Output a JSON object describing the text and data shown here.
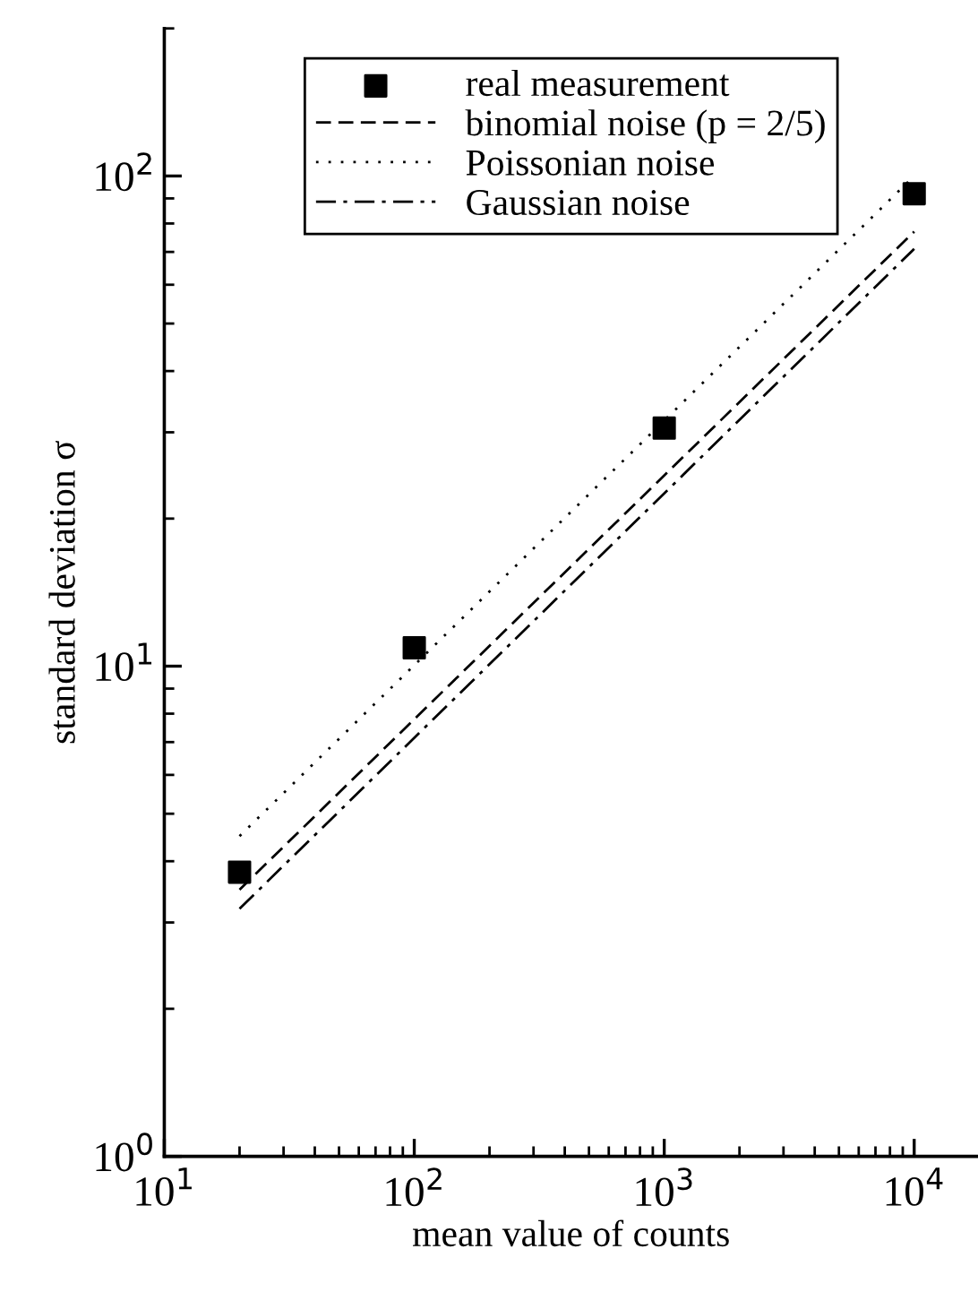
{
  "chart_data": {
    "type": "scatter",
    "xlabel": "mean value of counts",
    "ylabel": "standard deviation σ",
    "log": "xy",
    "xlim": [
      10,
      18000
    ],
    "ylim": [
      1,
      200
    ],
    "xticks": [
      {
        "value": 10,
        "label": "10$^{1}$"
      },
      {
        "value": 100,
        "label": "10$^{2}$"
      },
      {
        "value": 1000,
        "label": "10$^{3}$"
      },
      {
        "value": 10000,
        "label": "10$^{4}$"
      }
    ],
    "yticks": [
      {
        "value": 1,
        "label": "10$^{0}$"
      },
      {
        "value": 10,
        "label": "10$^{1}$"
      },
      {
        "value": 100,
        "label": "10$^{2}$"
      }
    ],
    "legend": "top",
    "grid": false,
    "series": [
      {
        "name": "real measurement",
        "marker": "square",
        "color": "#000000",
        "x": [
          20,
          100,
          1000,
          10000
        ],
        "values": [
          3.8,
          10.9,
          30.6,
          92
        ]
      },
      {
        "name": "binomial noise (p = 2/5)",
        "type": "line",
        "line_style": "dashed",
        "color": "#000000",
        "x": [
          20,
          10000
        ],
        "values": [
          3.5,
          77
        ]
      },
      {
        "name": "Poissonian noise",
        "type": "line",
        "line_style": "dotted",
        "color": "#000000",
        "x": [
          20,
          10000
        ],
        "values": [
          4.5,
          100
        ]
      },
      {
        "name": "Gaussian noise",
        "type": "line",
        "line_style": "dashdot",
        "color": "#000000",
        "x": [
          20,
          10000
        ],
        "values": [
          3.2,
          71
        ]
      }
    ]
  }
}
